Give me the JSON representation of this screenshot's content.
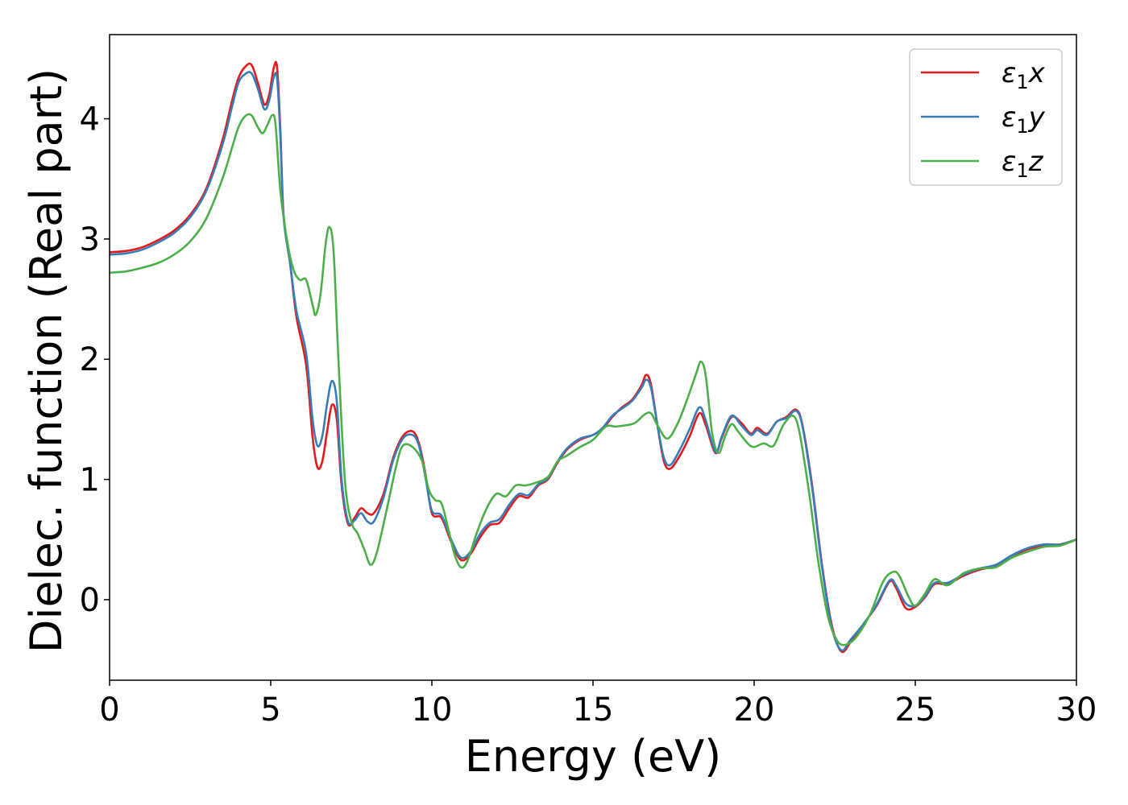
{
  "chart_data": {
    "type": "line",
    "title": "",
    "xlabel": "Energy (eV)",
    "ylabel": "Dielec. function (Real part)",
    "xlim": [
      0,
      30
    ],
    "ylim": [
      -0.67,
      4.7
    ],
    "xticks": [
      0,
      5,
      10,
      15,
      20,
      25,
      30
    ],
    "yticks": [
      0,
      1,
      2,
      3,
      4
    ],
    "grid": false,
    "legend_position": "top-right",
    "series": [
      {
        "name": "ε₁x",
        "label_base": "ε",
        "label_sub": "1",
        "label_var": "x",
        "color": "#e41a1c",
        "points": [
          [
            0,
            2.89
          ],
          [
            0.5,
            2.9
          ],
          [
            1,
            2.93
          ],
          [
            1.5,
            2.99
          ],
          [
            2,
            3.07
          ],
          [
            2.5,
            3.2
          ],
          [
            3,
            3.42
          ],
          [
            3.5,
            3.82
          ],
          [
            3.8,
            4.15
          ],
          [
            4,
            4.34
          ],
          [
            4.2,
            4.43
          ],
          [
            4.4,
            4.45
          ],
          [
            4.6,
            4.3
          ],
          [
            4.8,
            4.12
          ],
          [
            4.95,
            4.2
          ],
          [
            5.1,
            4.43
          ],
          [
            5.2,
            4.42
          ],
          [
            5.3,
            3.9
          ],
          [
            5.4,
            3.2
          ],
          [
            5.6,
            2.8
          ],
          [
            5.8,
            2.35
          ],
          [
            6.1,
            1.95
          ],
          [
            6.3,
            1.35
          ],
          [
            6.45,
            1.1
          ],
          [
            6.6,
            1.15
          ],
          [
            6.75,
            1.4
          ],
          [
            6.9,
            1.62
          ],
          [
            7.05,
            1.5
          ],
          [
            7.2,
            0.95
          ],
          [
            7.4,
            0.63
          ],
          [
            7.6,
            0.68
          ],
          [
            7.8,
            0.76
          ],
          [
            8.0,
            0.72
          ],
          [
            8.2,
            0.72
          ],
          [
            8.5,
            0.88
          ],
          [
            8.8,
            1.18
          ],
          [
            9.1,
            1.36
          ],
          [
            9.4,
            1.4
          ],
          [
            9.6,
            1.3
          ],
          [
            9.8,
            1.05
          ],
          [
            10.0,
            0.72
          ],
          [
            10.3,
            0.68
          ],
          [
            10.6,
            0.48
          ],
          [
            10.9,
            0.33
          ],
          [
            11.2,
            0.38
          ],
          [
            11.5,
            0.52
          ],
          [
            11.8,
            0.62
          ],
          [
            12.1,
            0.64
          ],
          [
            12.4,
            0.76
          ],
          [
            12.7,
            0.86
          ],
          [
            13.0,
            0.85
          ],
          [
            13.3,
            0.95
          ],
          [
            13.6,
            1.0
          ],
          [
            13.9,
            1.14
          ],
          [
            14.2,
            1.25
          ],
          [
            14.6,
            1.33
          ],
          [
            15.0,
            1.37
          ],
          [
            15.3,
            1.42
          ],
          [
            15.6,
            1.52
          ],
          [
            15.9,
            1.6
          ],
          [
            16.2,
            1.66
          ],
          [
            16.5,
            1.78
          ],
          [
            16.65,
            1.87
          ],
          [
            16.8,
            1.79
          ],
          [
            17.0,
            1.45
          ],
          [
            17.2,
            1.15
          ],
          [
            17.4,
            1.09
          ],
          [
            17.7,
            1.2
          ],
          [
            18.0,
            1.36
          ],
          [
            18.3,
            1.55
          ],
          [
            18.5,
            1.45
          ],
          [
            18.8,
            1.22
          ],
          [
            19.0,
            1.35
          ],
          [
            19.3,
            1.52
          ],
          [
            19.6,
            1.47
          ],
          [
            19.9,
            1.38
          ],
          [
            20.1,
            1.43
          ],
          [
            20.4,
            1.38
          ],
          [
            20.7,
            1.48
          ],
          [
            21.0,
            1.52
          ],
          [
            21.3,
            1.58
          ],
          [
            21.5,
            1.45
          ],
          [
            21.8,
            0.95
          ],
          [
            22.1,
            0.3
          ],
          [
            22.4,
            -0.2
          ],
          [
            22.7,
            -0.43
          ],
          [
            23.0,
            -0.35
          ],
          [
            23.4,
            -0.2
          ],
          [
            23.8,
            -0.05
          ],
          [
            24.2,
            0.15
          ],
          [
            24.4,
            0.1
          ],
          [
            24.7,
            -0.07
          ],
          [
            25.0,
            -0.06
          ],
          [
            25.3,
            0.02
          ],
          [
            25.6,
            0.13
          ],
          [
            26.0,
            0.13
          ],
          [
            26.5,
            0.2
          ],
          [
            27.0,
            0.25
          ],
          [
            27.5,
            0.28
          ],
          [
            28.0,
            0.36
          ],
          [
            28.5,
            0.42
          ],
          [
            29.0,
            0.45
          ],
          [
            29.5,
            0.46
          ],
          [
            30.0,
            0.5
          ]
        ]
      },
      {
        "name": "ε₁y",
        "label_base": "ε",
        "label_sub": "1",
        "label_var": "y",
        "color": "#377eb8",
        "points": [
          [
            0,
            2.87
          ],
          [
            0.5,
            2.88
          ],
          [
            1,
            2.91
          ],
          [
            1.5,
            2.97
          ],
          [
            2,
            3.05
          ],
          [
            2.5,
            3.18
          ],
          [
            3,
            3.4
          ],
          [
            3.5,
            3.78
          ],
          [
            3.8,
            4.1
          ],
          [
            4,
            4.3
          ],
          [
            4.2,
            4.37
          ],
          [
            4.4,
            4.38
          ],
          [
            4.6,
            4.25
          ],
          [
            4.8,
            4.08
          ],
          [
            4.95,
            4.15
          ],
          [
            5.1,
            4.35
          ],
          [
            5.2,
            4.33
          ],
          [
            5.3,
            3.85
          ],
          [
            5.4,
            3.18
          ],
          [
            5.6,
            2.8
          ],
          [
            5.8,
            2.4
          ],
          [
            6.1,
            2.05
          ],
          [
            6.3,
            1.5
          ],
          [
            6.45,
            1.28
          ],
          [
            6.6,
            1.36
          ],
          [
            6.75,
            1.63
          ],
          [
            6.9,
            1.82
          ],
          [
            7.05,
            1.65
          ],
          [
            7.2,
            1.0
          ],
          [
            7.4,
            0.65
          ],
          [
            7.6,
            0.66
          ],
          [
            7.8,
            0.72
          ],
          [
            8.0,
            0.65
          ],
          [
            8.2,
            0.65
          ],
          [
            8.5,
            0.85
          ],
          [
            8.8,
            1.16
          ],
          [
            9.1,
            1.34
          ],
          [
            9.4,
            1.37
          ],
          [
            9.6,
            1.28
          ],
          [
            9.8,
            1.02
          ],
          [
            10.0,
            0.74
          ],
          [
            10.3,
            0.7
          ],
          [
            10.6,
            0.5
          ],
          [
            10.9,
            0.35
          ],
          [
            11.2,
            0.4
          ],
          [
            11.5,
            0.55
          ],
          [
            11.8,
            0.64
          ],
          [
            12.1,
            0.67
          ],
          [
            12.4,
            0.79
          ],
          [
            12.7,
            0.88
          ],
          [
            13.0,
            0.87
          ],
          [
            13.3,
            0.96
          ],
          [
            13.6,
            1.01
          ],
          [
            13.9,
            1.15
          ],
          [
            14.2,
            1.26
          ],
          [
            14.6,
            1.34
          ],
          [
            15.0,
            1.37
          ],
          [
            15.3,
            1.43
          ],
          [
            15.6,
            1.53
          ],
          [
            15.9,
            1.59
          ],
          [
            16.2,
            1.65
          ],
          [
            16.5,
            1.76
          ],
          [
            16.65,
            1.83
          ],
          [
            16.8,
            1.76
          ],
          [
            17.0,
            1.45
          ],
          [
            17.2,
            1.18
          ],
          [
            17.4,
            1.12
          ],
          [
            17.7,
            1.25
          ],
          [
            18.0,
            1.42
          ],
          [
            18.3,
            1.6
          ],
          [
            18.5,
            1.49
          ],
          [
            18.8,
            1.23
          ],
          [
            19.0,
            1.36
          ],
          [
            19.3,
            1.53
          ],
          [
            19.6,
            1.45
          ],
          [
            19.9,
            1.37
          ],
          [
            20.1,
            1.41
          ],
          [
            20.4,
            1.37
          ],
          [
            20.7,
            1.48
          ],
          [
            21.0,
            1.51
          ],
          [
            21.3,
            1.57
          ],
          [
            21.5,
            1.44
          ],
          [
            21.8,
            0.93
          ],
          [
            22.1,
            0.28
          ],
          [
            22.4,
            -0.22
          ],
          [
            22.7,
            -0.42
          ],
          [
            23.0,
            -0.33
          ],
          [
            23.4,
            -0.2
          ],
          [
            23.8,
            -0.04
          ],
          [
            24.2,
            0.16
          ],
          [
            24.4,
            0.12
          ],
          [
            24.7,
            -0.03
          ],
          [
            25.0,
            -0.05
          ],
          [
            25.3,
            0.03
          ],
          [
            25.6,
            0.14
          ],
          [
            26.0,
            0.14
          ],
          [
            26.5,
            0.21
          ],
          [
            27.0,
            0.26
          ],
          [
            27.5,
            0.29
          ],
          [
            28.0,
            0.37
          ],
          [
            28.5,
            0.43
          ],
          [
            29.0,
            0.46
          ],
          [
            29.5,
            0.46
          ],
          [
            30.0,
            0.5
          ]
        ]
      },
      {
        "name": "ε₁z",
        "label_base": "ε",
        "label_sub": "1",
        "label_var": "z",
        "color": "#4daf4a",
        "points": [
          [
            0,
            2.72
          ],
          [
            0.5,
            2.73
          ],
          [
            1,
            2.76
          ],
          [
            1.5,
            2.8
          ],
          [
            2,
            2.87
          ],
          [
            2.5,
            2.98
          ],
          [
            3,
            3.17
          ],
          [
            3.5,
            3.5
          ],
          [
            3.8,
            3.76
          ],
          [
            4,
            3.93
          ],
          [
            4.2,
            4.02
          ],
          [
            4.4,
            4.03
          ],
          [
            4.6,
            3.93
          ],
          [
            4.75,
            3.88
          ],
          [
            4.9,
            3.95
          ],
          [
            5.05,
            4.03
          ],
          [
            5.15,
            3.95
          ],
          [
            5.3,
            3.4
          ],
          [
            5.5,
            3.0
          ],
          [
            5.7,
            2.75
          ],
          [
            5.9,
            2.66
          ],
          [
            6.1,
            2.66
          ],
          [
            6.3,
            2.45
          ],
          [
            6.4,
            2.37
          ],
          [
            6.55,
            2.55
          ],
          [
            6.7,
            2.95
          ],
          [
            6.82,
            3.1
          ],
          [
            6.95,
            2.9
          ],
          [
            7.1,
            2.0
          ],
          [
            7.3,
            1.0
          ],
          [
            7.5,
            0.65
          ],
          [
            7.7,
            0.55
          ],
          [
            7.9,
            0.42
          ],
          [
            8.1,
            0.29
          ],
          [
            8.3,
            0.4
          ],
          [
            8.6,
            0.75
          ],
          [
            8.9,
            1.12
          ],
          [
            9.1,
            1.28
          ],
          [
            9.4,
            1.27
          ],
          [
            9.7,
            1.15
          ],
          [
            9.9,
            0.92
          ],
          [
            10.1,
            0.83
          ],
          [
            10.3,
            0.8
          ],
          [
            10.5,
            0.6
          ],
          [
            10.7,
            0.38
          ],
          [
            10.9,
            0.27
          ],
          [
            11.1,
            0.32
          ],
          [
            11.4,
            0.56
          ],
          [
            11.7,
            0.76
          ],
          [
            12.0,
            0.88
          ],
          [
            12.3,
            0.86
          ],
          [
            12.6,
            0.95
          ],
          [
            12.9,
            0.95
          ],
          [
            13.2,
            0.97
          ],
          [
            13.6,
            1.02
          ],
          [
            13.9,
            1.15
          ],
          [
            14.2,
            1.2
          ],
          [
            14.6,
            1.27
          ],
          [
            15.0,
            1.33
          ],
          [
            15.4,
            1.44
          ],
          [
            15.7,
            1.44
          ],
          [
            16.0,
            1.45
          ],
          [
            16.3,
            1.47
          ],
          [
            16.6,
            1.54
          ],
          [
            16.8,
            1.55
          ],
          [
            17.0,
            1.45
          ],
          [
            17.3,
            1.34
          ],
          [
            17.6,
            1.45
          ],
          [
            17.9,
            1.65
          ],
          [
            18.2,
            1.88
          ],
          [
            18.35,
            1.98
          ],
          [
            18.5,
            1.86
          ],
          [
            18.7,
            1.38
          ],
          [
            18.9,
            1.22
          ],
          [
            19.1,
            1.36
          ],
          [
            19.3,
            1.46
          ],
          [
            19.5,
            1.4
          ],
          [
            19.8,
            1.3
          ],
          [
            20.0,
            1.27
          ],
          [
            20.3,
            1.3
          ],
          [
            20.6,
            1.28
          ],
          [
            20.9,
            1.45
          ],
          [
            21.2,
            1.53
          ],
          [
            21.4,
            1.4
          ],
          [
            21.7,
            0.9
          ],
          [
            22.0,
            0.3
          ],
          [
            22.3,
            -0.15
          ],
          [
            22.6,
            -0.35
          ],
          [
            22.9,
            -0.37
          ],
          [
            23.2,
            -0.3
          ],
          [
            23.6,
            -0.12
          ],
          [
            24.0,
            0.15
          ],
          [
            24.3,
            0.23
          ],
          [
            24.5,
            0.2
          ],
          [
            24.8,
            0.02
          ],
          [
            25.0,
            -0.05
          ],
          [
            25.3,
            0.05
          ],
          [
            25.6,
            0.17
          ],
          [
            26.0,
            0.12
          ],
          [
            26.5,
            0.22
          ],
          [
            27.0,
            0.26
          ],
          [
            27.5,
            0.27
          ],
          [
            28.0,
            0.35
          ],
          [
            28.5,
            0.4
          ],
          [
            29.0,
            0.44
          ],
          [
            29.5,
            0.45
          ],
          [
            30.0,
            0.5
          ]
        ]
      }
    ]
  }
}
